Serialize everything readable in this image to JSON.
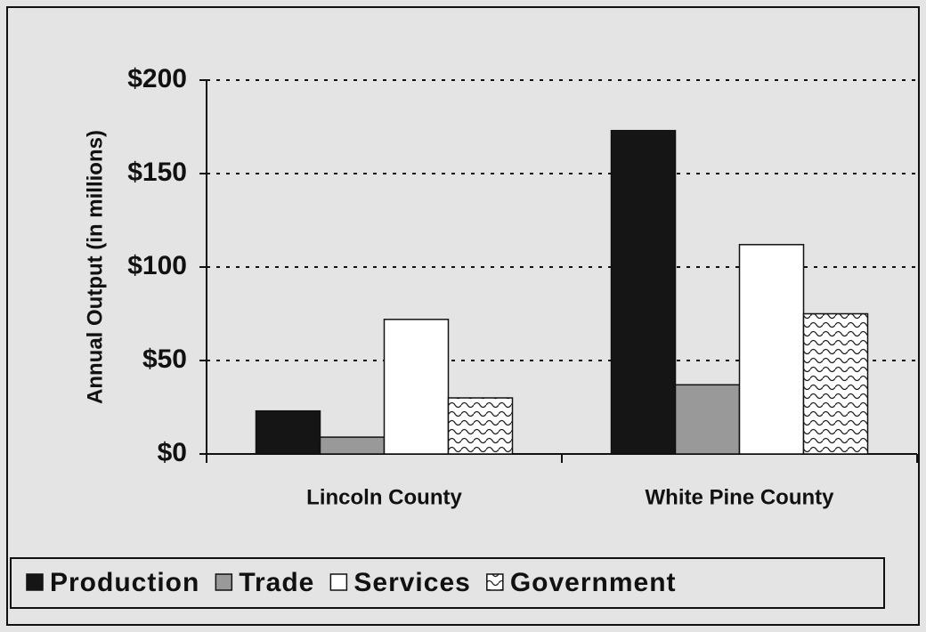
{
  "chart_data": {
    "type": "bar",
    "y_label": "Annual Output (in millions)",
    "categories": [
      "Lincoln County",
      "White Pine County"
    ],
    "series": [
      {
        "name": "Production",
        "color": "#151515",
        "values": [
          23,
          173
        ]
      },
      {
        "name": "Trade",
        "color": "#999999",
        "values": [
          9,
          37
        ]
      },
      {
        "name": "Services",
        "color": "#ffffff",
        "values": [
          72,
          112
        ]
      },
      {
        "name": "Government",
        "color": "#ffffff",
        "pattern": "wave",
        "values": [
          30,
          75
        ]
      }
    ],
    "ylim": [
      0,
      200
    ],
    "yticks": [
      {
        "value": 0,
        "label": "$0"
      },
      {
        "value": 50,
        "label": "$50"
      },
      {
        "value": 100,
        "label": "$100"
      },
      {
        "value": 150,
        "label": "$150"
      },
      {
        "value": 200,
        "label": "$200"
      }
    ],
    "grid": true,
    "legend": "bottom"
  }
}
